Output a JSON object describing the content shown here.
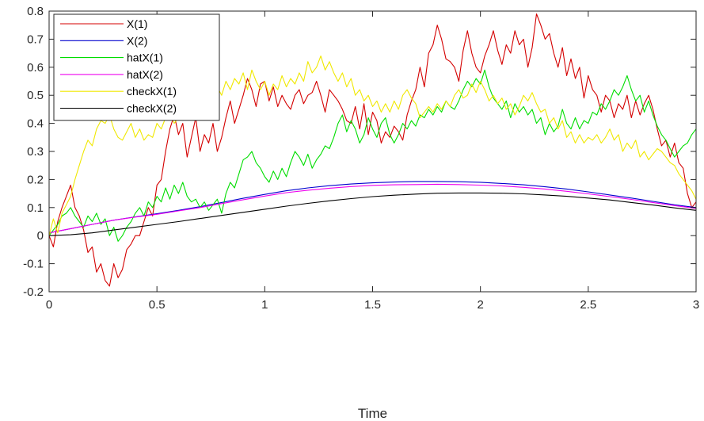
{
  "chart_data": {
    "type": "line",
    "title": "",
    "xlabel": "Time",
    "ylabel": "",
    "xlim": [
      0,
      3
    ],
    "ylim": [
      -0.2,
      0.8
    ],
    "xticks": [
      0,
      0.5,
      1,
      1.5,
      2,
      2.5,
      3
    ],
    "xtick_labels": [
      "0",
      "0.5",
      "1",
      "1.5",
      "2",
      "2.5",
      "3"
    ],
    "yticks": [
      -0.2,
      -0.1,
      0,
      0.1,
      0.2,
      0.3,
      0.4,
      0.5,
      0.6,
      0.7,
      0.8
    ],
    "ytick_labels": [
      "-0.2",
      "-0.1",
      "0",
      "0.1",
      "0.2",
      "0.3",
      "0.4",
      "0.5",
      "0.6",
      "0.7",
      "0.8"
    ],
    "grid": false,
    "legend_position": "top-left",
    "series": [
      {
        "name": "X(1)",
        "color": "#d40000",
        "x": [
          0,
          0.02,
          0.04,
          0.06,
          0.08,
          0.1,
          0.12,
          0.14,
          0.16,
          0.18,
          0.2,
          0.22,
          0.24,
          0.26,
          0.28,
          0.3,
          0.32,
          0.34,
          0.36,
          0.38,
          0.4,
          0.42,
          0.44,
          0.46,
          0.48,
          0.5,
          0.52,
          0.54,
          0.56,
          0.58,
          0.6,
          0.62,
          0.64,
          0.66,
          0.68,
          0.7,
          0.72,
          0.74,
          0.76,
          0.78,
          0.8,
          0.82,
          0.84,
          0.86,
          0.88,
          0.9,
          0.92,
          0.94,
          0.96,
          0.98,
          1.0,
          1.02,
          1.04,
          1.06,
          1.08,
          1.1,
          1.12,
          1.14,
          1.16,
          1.18,
          1.2,
          1.22,
          1.24,
          1.26,
          1.28,
          1.3,
          1.32,
          1.34,
          1.36,
          1.38,
          1.4,
          1.42,
          1.44,
          1.46,
          1.48,
          1.5,
          1.52,
          1.54,
          1.56,
          1.58,
          1.6,
          1.62,
          1.64,
          1.66,
          1.68,
          1.7,
          1.72,
          1.74,
          1.76,
          1.78,
          1.8,
          1.82,
          1.84,
          1.86,
          1.88,
          1.9,
          1.92,
          1.94,
          1.96,
          1.98,
          2.0,
          2.02,
          2.04,
          2.06,
          2.08,
          2.1,
          2.12,
          2.14,
          2.16,
          2.18,
          2.2,
          2.22,
          2.24,
          2.26,
          2.28,
          2.3,
          2.32,
          2.34,
          2.36,
          2.38,
          2.4,
          2.42,
          2.44,
          2.46,
          2.48,
          2.5,
          2.52,
          2.54,
          2.56,
          2.58,
          2.6,
          2.62,
          2.64,
          2.66,
          2.68,
          2.7,
          2.72,
          2.74,
          2.76,
          2.78,
          2.8,
          2.82,
          2.84,
          2.86,
          2.88,
          2.9,
          2.92,
          2.94,
          2.96,
          2.98,
          3.0
        ],
        "y": [
          0.0,
          -0.04,
          0.05,
          0.1,
          0.14,
          0.18,
          0.1,
          0.07,
          0.02,
          -0.06,
          -0.04,
          -0.13,
          -0.1,
          -0.16,
          -0.18,
          -0.1,
          -0.15,
          -0.12,
          -0.05,
          -0.03,
          0.0,
          0.0,
          0.05,
          0.1,
          0.07,
          0.18,
          0.2,
          0.3,
          0.38,
          0.43,
          0.36,
          0.4,
          0.28,
          0.35,
          0.42,
          0.3,
          0.36,
          0.33,
          0.4,
          0.3,
          0.35,
          0.42,
          0.48,
          0.4,
          0.45,
          0.5,
          0.56,
          0.52,
          0.46,
          0.54,
          0.55,
          0.48,
          0.53,
          0.46,
          0.5,
          0.47,
          0.45,
          0.5,
          0.52,
          0.47,
          0.5,
          0.51,
          0.55,
          0.5,
          0.44,
          0.52,
          0.5,
          0.48,
          0.45,
          0.41,
          0.4,
          0.46,
          0.38,
          0.47,
          0.36,
          0.44,
          0.41,
          0.33,
          0.37,
          0.35,
          0.39,
          0.37,
          0.34,
          0.43,
          0.48,
          0.52,
          0.6,
          0.53,
          0.65,
          0.68,
          0.75,
          0.7,
          0.63,
          0.62,
          0.6,
          0.55,
          0.66,
          0.73,
          0.65,
          0.6,
          0.58,
          0.64,
          0.68,
          0.73,
          0.66,
          0.61,
          0.68,
          0.65,
          0.73,
          0.68,
          0.7,
          0.6,
          0.67,
          0.79,
          0.75,
          0.7,
          0.72,
          0.65,
          0.6,
          0.67,
          0.57,
          0.63,
          0.56,
          0.6,
          0.49,
          0.57,
          0.52,
          0.5,
          0.44,
          0.5,
          0.48,
          0.42,
          0.47,
          0.45,
          0.5,
          0.42,
          0.48,
          0.43,
          0.47,
          0.5,
          0.45,
          0.38,
          0.32,
          0.34,
          0.28,
          0.33,
          0.26,
          0.24,
          0.15,
          0.1,
          0.12
        ]
      },
      {
        "name": "X(2)",
        "color": "#0000cd",
        "x": [
          0,
          0.1,
          0.2,
          0.3,
          0.4,
          0.5,
          0.6,
          0.7,
          0.8,
          0.9,
          1.0,
          1.1,
          1.2,
          1.3,
          1.4,
          1.5,
          1.6,
          1.7,
          1.8,
          1.9,
          2.0,
          2.1,
          2.2,
          2.3,
          2.4,
          2.5,
          2.6,
          2.7,
          2.8,
          2.9,
          3.0
        ],
        "y": [
          0.01,
          0.025,
          0.04,
          0.055,
          0.067,
          0.078,
          0.09,
          0.103,
          0.118,
          0.133,
          0.147,
          0.16,
          0.17,
          0.178,
          0.184,
          0.188,
          0.191,
          0.193,
          0.193,
          0.192,
          0.19,
          0.186,
          0.181,
          0.174,
          0.166,
          0.156,
          0.145,
          0.134,
          0.122,
          0.11,
          0.1
        ]
      },
      {
        "name": "hatX(1)",
        "color": "#00dd00",
        "x": [
          0,
          0.02,
          0.04,
          0.06,
          0.08,
          0.1,
          0.12,
          0.14,
          0.16,
          0.18,
          0.2,
          0.22,
          0.24,
          0.26,
          0.28,
          0.3,
          0.32,
          0.34,
          0.36,
          0.38,
          0.4,
          0.42,
          0.44,
          0.46,
          0.48,
          0.5,
          0.52,
          0.54,
          0.56,
          0.58,
          0.6,
          0.62,
          0.64,
          0.66,
          0.68,
          0.7,
          0.72,
          0.74,
          0.76,
          0.78,
          0.8,
          0.82,
          0.84,
          0.86,
          0.88,
          0.9,
          0.92,
          0.94,
          0.96,
          0.98,
          1.0,
          1.02,
          1.04,
          1.06,
          1.08,
          1.1,
          1.12,
          1.14,
          1.16,
          1.18,
          1.2,
          1.22,
          1.24,
          1.26,
          1.28,
          1.3,
          1.32,
          1.34,
          1.36,
          1.38,
          1.4,
          1.42,
          1.44,
          1.46,
          1.48,
          1.5,
          1.52,
          1.54,
          1.56,
          1.58,
          1.6,
          1.62,
          1.64,
          1.66,
          1.68,
          1.7,
          1.72,
          1.74,
          1.76,
          1.78,
          1.8,
          1.82,
          1.84,
          1.86,
          1.88,
          1.9,
          1.92,
          1.94,
          1.96,
          1.98,
          2.0,
          2.02,
          2.04,
          2.06,
          2.08,
          2.1,
          2.12,
          2.14,
          2.16,
          2.18,
          2.2,
          2.22,
          2.24,
          2.26,
          2.28,
          2.3,
          2.32,
          2.34,
          2.36,
          2.38,
          2.4,
          2.42,
          2.44,
          2.46,
          2.48,
          2.5,
          2.52,
          2.54,
          2.56,
          2.58,
          2.6,
          2.62,
          2.64,
          2.66,
          2.68,
          2.7,
          2.72,
          2.74,
          2.76,
          2.78,
          2.8,
          2.82,
          2.84,
          2.86,
          2.88,
          2.9,
          2.92,
          2.94,
          2.96,
          2.98,
          3.0
        ],
        "y": [
          0.0,
          0.02,
          0.04,
          0.07,
          0.08,
          0.1,
          0.07,
          0.05,
          0.03,
          0.07,
          0.05,
          0.08,
          0.04,
          0.06,
          0.0,
          0.03,
          -0.02,
          0.0,
          0.03,
          0.05,
          0.08,
          0.1,
          0.07,
          0.12,
          0.1,
          0.14,
          0.12,
          0.17,
          0.13,
          0.18,
          0.15,
          0.19,
          0.14,
          0.12,
          0.13,
          0.1,
          0.12,
          0.09,
          0.11,
          0.13,
          0.08,
          0.15,
          0.19,
          0.17,
          0.22,
          0.27,
          0.28,
          0.3,
          0.26,
          0.24,
          0.21,
          0.19,
          0.23,
          0.2,
          0.24,
          0.21,
          0.26,
          0.3,
          0.28,
          0.25,
          0.29,
          0.24,
          0.27,
          0.29,
          0.32,
          0.31,
          0.35,
          0.4,
          0.43,
          0.37,
          0.41,
          0.38,
          0.33,
          0.36,
          0.42,
          0.38,
          0.35,
          0.4,
          0.42,
          0.36,
          0.33,
          0.36,
          0.4,
          0.38,
          0.41,
          0.39,
          0.43,
          0.42,
          0.45,
          0.43,
          0.46,
          0.44,
          0.48,
          0.46,
          0.45,
          0.48,
          0.52,
          0.55,
          0.53,
          0.56,
          0.54,
          0.59,
          0.53,
          0.49,
          0.47,
          0.45,
          0.48,
          0.42,
          0.47,
          0.44,
          0.46,
          0.43,
          0.45,
          0.4,
          0.42,
          0.36,
          0.4,
          0.37,
          0.39,
          0.45,
          0.4,
          0.38,
          0.42,
          0.38,
          0.41,
          0.4,
          0.44,
          0.43,
          0.47,
          0.45,
          0.48,
          0.52,
          0.5,
          0.53,
          0.57,
          0.52,
          0.48,
          0.5,
          0.44,
          0.48,
          0.43,
          0.39,
          0.36,
          0.34,
          0.31,
          0.28,
          0.3,
          0.32,
          0.33,
          0.36,
          0.38
        ]
      },
      {
        "name": "hatX(2)",
        "color": "#ee00ee",
        "x": [
          0,
          0.1,
          0.2,
          0.3,
          0.4,
          0.5,
          0.6,
          0.7,
          0.8,
          0.9,
          1.0,
          1.1,
          1.2,
          1.3,
          1.4,
          1.5,
          1.6,
          1.7,
          1.8,
          1.9,
          2.0,
          2.1,
          2.2,
          2.3,
          2.4,
          2.5,
          2.6,
          2.7,
          2.8,
          2.9,
          3.0
        ],
        "y": [
          0.01,
          0.025,
          0.04,
          0.055,
          0.066,
          0.076,
          0.088,
          0.1,
          0.114,
          0.128,
          0.141,
          0.153,
          0.162,
          0.169,
          0.175,
          0.179,
          0.181,
          0.182,
          0.183,
          0.182,
          0.18,
          0.177,
          0.172,
          0.166,
          0.158,
          0.149,
          0.139,
          0.129,
          0.118,
          0.107,
          0.097
        ]
      },
      {
        "name": "checkX(1)",
        "color": "#f0e800",
        "x": [
          0,
          0.02,
          0.04,
          0.06,
          0.08,
          0.1,
          0.12,
          0.14,
          0.16,
          0.18,
          0.2,
          0.22,
          0.24,
          0.26,
          0.28,
          0.3,
          0.32,
          0.34,
          0.36,
          0.38,
          0.4,
          0.42,
          0.44,
          0.46,
          0.48,
          0.5,
          0.52,
          0.54,
          0.56,
          0.58,
          0.6,
          0.62,
          0.64,
          0.66,
          0.68,
          0.7,
          0.72,
          0.74,
          0.76,
          0.78,
          0.8,
          0.82,
          0.84,
          0.86,
          0.88,
          0.9,
          0.92,
          0.94,
          0.96,
          0.98,
          1.0,
          1.02,
          1.04,
          1.06,
          1.08,
          1.1,
          1.12,
          1.14,
          1.16,
          1.18,
          1.2,
          1.22,
          1.24,
          1.26,
          1.28,
          1.3,
          1.32,
          1.34,
          1.36,
          1.38,
          1.4,
          1.42,
          1.44,
          1.46,
          1.48,
          1.5,
          1.52,
          1.54,
          1.56,
          1.58,
          1.6,
          1.62,
          1.64,
          1.66,
          1.68,
          1.7,
          1.72,
          1.74,
          1.76,
          1.78,
          1.8,
          1.82,
          1.84,
          1.86,
          1.88,
          1.9,
          1.92,
          1.94,
          1.96,
          1.98,
          2.0,
          2.02,
          2.04,
          2.06,
          2.08,
          2.1,
          2.12,
          2.14,
          2.16,
          2.18,
          2.2,
          2.22,
          2.24,
          2.26,
          2.28,
          2.3,
          2.32,
          2.34,
          2.36,
          2.38,
          2.4,
          2.42,
          2.44,
          2.46,
          2.48,
          2.5,
          2.52,
          2.54,
          2.56,
          2.58,
          2.6,
          2.62,
          2.64,
          2.66,
          2.68,
          2.7,
          2.72,
          2.74,
          2.76,
          2.78,
          2.8,
          2.82,
          2.84,
          2.86,
          2.88,
          2.9,
          2.92,
          2.94,
          2.96,
          2.98,
          3.0
        ],
        "y": [
          0.0,
          0.06,
          0.01,
          0.08,
          0.11,
          0.14,
          0.2,
          0.25,
          0.3,
          0.34,
          0.32,
          0.38,
          0.41,
          0.4,
          0.43,
          0.38,
          0.35,
          0.34,
          0.37,
          0.4,
          0.35,
          0.38,
          0.34,
          0.36,
          0.35,
          0.4,
          0.38,
          0.42,
          0.44,
          0.4,
          0.42,
          0.45,
          0.43,
          0.48,
          0.46,
          0.5,
          0.46,
          0.5,
          0.48,
          0.53,
          0.5,
          0.55,
          0.52,
          0.56,
          0.54,
          0.58,
          0.52,
          0.59,
          0.55,
          0.52,
          0.55,
          0.5,
          0.54,
          0.52,
          0.57,
          0.53,
          0.56,
          0.54,
          0.58,
          0.55,
          0.62,
          0.58,
          0.6,
          0.64,
          0.59,
          0.62,
          0.58,
          0.55,
          0.58,
          0.53,
          0.56,
          0.5,
          0.52,
          0.48,
          0.5,
          0.46,
          0.48,
          0.44,
          0.47,
          0.44,
          0.48,
          0.45,
          0.5,
          0.52,
          0.49,
          0.47,
          0.42,
          0.44,
          0.46,
          0.44,
          0.47,
          0.45,
          0.48,
          0.46,
          0.5,
          0.52,
          0.49,
          0.5,
          0.54,
          0.51,
          0.55,
          0.52,
          0.48,
          0.5,
          0.47,
          0.49,
          0.45,
          0.47,
          0.43,
          0.46,
          0.5,
          0.48,
          0.51,
          0.47,
          0.44,
          0.45,
          0.4,
          0.42,
          0.38,
          0.41,
          0.35,
          0.37,
          0.33,
          0.36,
          0.33,
          0.35,
          0.34,
          0.36,
          0.33,
          0.35,
          0.38,
          0.34,
          0.36,
          0.3,
          0.33,
          0.31,
          0.34,
          0.28,
          0.3,
          0.27,
          0.29,
          0.31,
          0.3,
          0.28,
          0.26,
          0.25,
          0.22,
          0.2,
          0.18,
          0.16,
          0.13
        ]
      },
      {
        "name": "checkX(2)",
        "color": "#000000",
        "x": [
          0,
          0.1,
          0.2,
          0.3,
          0.4,
          0.5,
          0.6,
          0.7,
          0.8,
          0.9,
          1.0,
          1.1,
          1.2,
          1.3,
          1.4,
          1.5,
          1.6,
          1.7,
          1.8,
          1.9,
          2.0,
          2.1,
          2.2,
          2.3,
          2.4,
          2.5,
          2.6,
          2.7,
          2.8,
          2.9,
          3.0
        ],
        "y": [
          0.0,
          0.003,
          0.01,
          0.02,
          0.03,
          0.04,
          0.05,
          0.061,
          0.072,
          0.083,
          0.094,
          0.105,
          0.115,
          0.124,
          0.132,
          0.139,
          0.144,
          0.148,
          0.151,
          0.152,
          0.152,
          0.151,
          0.149,
          0.145,
          0.14,
          0.134,
          0.127,
          0.118,
          0.109,
          0.099,
          0.09
        ]
      }
    ]
  }
}
